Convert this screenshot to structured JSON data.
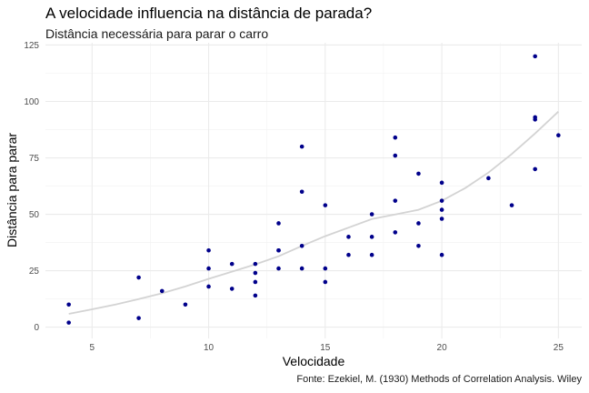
{
  "chart_data": {
    "type": "scatter",
    "title": "A velocidade influencia na distância de parada?",
    "subtitle": "Distância necessária para parar o carro",
    "caption": "Fonte: Ezekiel, M. (1930) Methods of Correlation Analysis. Wiley",
    "xlabel": "Velocidade",
    "ylabel": "Distância para parar",
    "xlim": [
      3.0,
      26.0
    ],
    "ylim": [
      -5,
      126
    ],
    "xticks": [
      5,
      10,
      15,
      20,
      25
    ],
    "yticks": [
      0,
      25,
      50,
      75,
      100,
      125
    ],
    "grid": true,
    "point_color": "#00008b",
    "smooth_color": "#d3d3d3",
    "points": [
      {
        "x": 4,
        "y": 2
      },
      {
        "x": 4,
        "y": 10
      },
      {
        "x": 7,
        "y": 4
      },
      {
        "x": 7,
        "y": 22
      },
      {
        "x": 8,
        "y": 16
      },
      {
        "x": 9,
        "y": 10
      },
      {
        "x": 10,
        "y": 18
      },
      {
        "x": 10,
        "y": 26
      },
      {
        "x": 10,
        "y": 34
      },
      {
        "x": 11,
        "y": 17
      },
      {
        "x": 11,
        "y": 28
      },
      {
        "x": 12,
        "y": 14
      },
      {
        "x": 12,
        "y": 20
      },
      {
        "x": 12,
        "y": 24
      },
      {
        "x": 12,
        "y": 28
      },
      {
        "x": 13,
        "y": 26
      },
      {
        "x": 13,
        "y": 34
      },
      {
        "x": 13,
        "y": 34
      },
      {
        "x": 13,
        "y": 46
      },
      {
        "x": 14,
        "y": 26
      },
      {
        "x": 14,
        "y": 36
      },
      {
        "x": 14,
        "y": 60
      },
      {
        "x": 14,
        "y": 80
      },
      {
        "x": 15,
        "y": 20
      },
      {
        "x": 15,
        "y": 26
      },
      {
        "x": 15,
        "y": 54
      },
      {
        "x": 16,
        "y": 32
      },
      {
        "x": 16,
        "y": 40
      },
      {
        "x": 17,
        "y": 32
      },
      {
        "x": 17,
        "y": 40
      },
      {
        "x": 17,
        "y": 50
      },
      {
        "x": 18,
        "y": 42
      },
      {
        "x": 18,
        "y": 56
      },
      {
        "x": 18,
        "y": 76
      },
      {
        "x": 18,
        "y": 84
      },
      {
        "x": 19,
        "y": 36
      },
      {
        "x": 19,
        "y": 46
      },
      {
        "x": 19,
        "y": 68
      },
      {
        "x": 20,
        "y": 32
      },
      {
        "x": 20,
        "y": 48
      },
      {
        "x": 20,
        "y": 52
      },
      {
        "x": 20,
        "y": 56
      },
      {
        "x": 20,
        "y": 64
      },
      {
        "x": 22,
        "y": 66
      },
      {
        "x": 23,
        "y": 54
      },
      {
        "x": 24,
        "y": 70
      },
      {
        "x": 24,
        "y": 92
      },
      {
        "x": 24,
        "y": 93
      },
      {
        "x": 24,
        "y": 120
      },
      {
        "x": 25,
        "y": 85
      }
    ],
    "smooth": [
      {
        "x": 4,
        "y": 5.9
      },
      {
        "x": 5,
        "y": 7.9
      },
      {
        "x": 6,
        "y": 10.0
      },
      {
        "x": 7,
        "y": 12.4
      },
      {
        "x": 8,
        "y": 15.0
      },
      {
        "x": 9,
        "y": 18.0
      },
      {
        "x": 10,
        "y": 21.4
      },
      {
        "x": 11,
        "y": 24.6
      },
      {
        "x": 12,
        "y": 27.8
      },
      {
        "x": 13,
        "y": 31.4
      },
      {
        "x": 14,
        "y": 36.0
      },
      {
        "x": 15,
        "y": 40.3
      },
      {
        "x": 16,
        "y": 44.1
      },
      {
        "x": 17,
        "y": 47.9
      },
      {
        "x": 18,
        "y": 49.9
      },
      {
        "x": 19,
        "y": 52.0
      },
      {
        "x": 20,
        "y": 56.0
      },
      {
        "x": 21,
        "y": 61.6
      },
      {
        "x": 22,
        "y": 68.5
      },
      {
        "x": 23,
        "y": 76.7
      },
      {
        "x": 24,
        "y": 85.8
      },
      {
        "x": 25,
        "y": 95.5
      }
    ]
  }
}
